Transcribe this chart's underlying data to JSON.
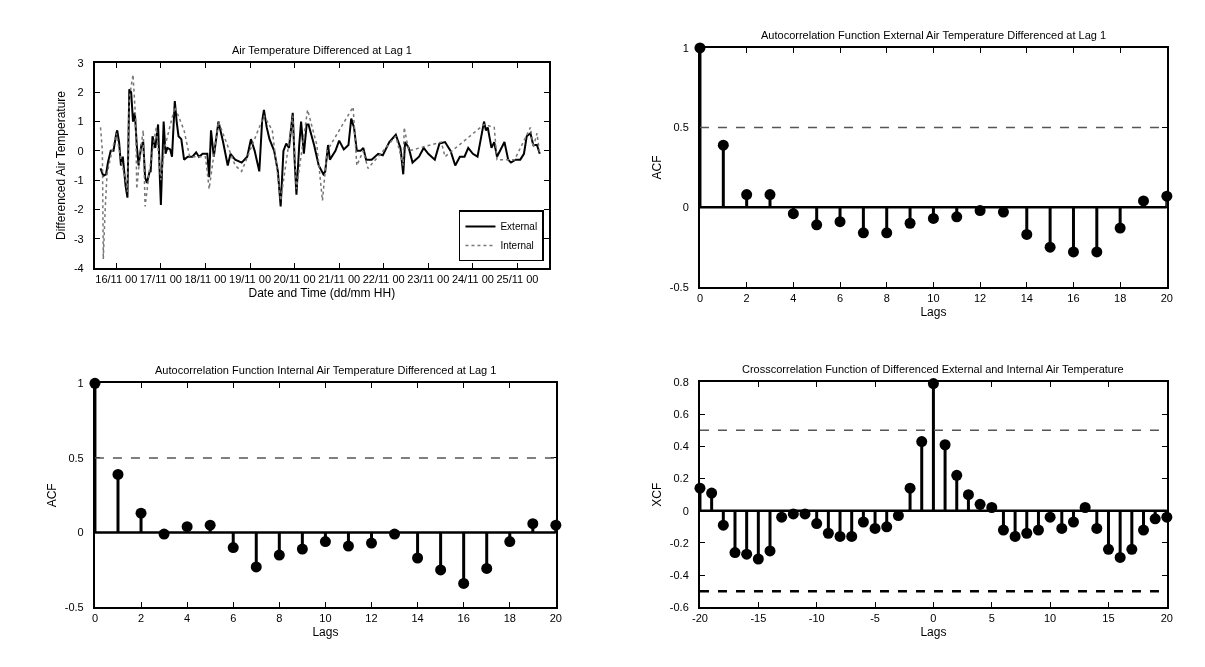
{
  "chart_data": [
    {
      "type": "line",
      "title": "Air Temperature Differenced at Lag 1",
      "xlabel": "Date and Time (dd/mm HH)",
      "ylabel": "Differenced Air Temperature",
      "xlim": [
        "--11-15T12:30",
        "--11-25T16:50"
      ],
      "ylim": [
        -4,
        3
      ],
      "yticks": [
        -4,
        -3,
        -2,
        -1,
        0,
        1,
        2,
        3
      ],
      "xticks": [
        {
          "value": "--11-16T00:00",
          "label": "16/11 00"
        },
        {
          "value": "--11-17T00:00",
          "label": "17/11 00"
        },
        {
          "value": "--11-18T00:00",
          "label": "18/11 00"
        },
        {
          "value": "--11-19T00:00",
          "label": "19/11 00"
        },
        {
          "value": "--11-20T00:00",
          "label": "20/11 00"
        },
        {
          "value": "--11-21T00:00",
          "label": "21/11 00"
        },
        {
          "value": "--11-22T00:00",
          "label": "22/11 00"
        },
        {
          "value": "--11-23T00:00",
          "label": "23/11 00"
        },
        {
          "value": "--11-24T00:00",
          "label": "24/11 00"
        },
        {
          "value": "--11-25T00:00",
          "label": "25/11 00"
        }
      ],
      "legend": "bottom right",
      "series": [
        {
          "name": "External",
          "color": "#000000",
          "line_style": "solid",
          "x": [
            "--11-15T15:30",
            "--11-15T17:00",
            "--11-15T18:30",
            "--11-15T19:30",
            "--11-15T21:00",
            "--11-15T22:30",
            "--11-16T00:00",
            "--11-16T00:30",
            "--11-16T01:30",
            "--11-16T02:30",
            "--11-16T03:30",
            "--11-16T05:00",
            "--11-16T06:00",
            "--11-16T07:00",
            "--11-16T08:00",
            "--11-16T09:00",
            "--11-16T10:00",
            "--11-16T11:00",
            "--11-16T12:00",
            "--11-16T13:30",
            "--11-16T14:30",
            "--11-16T15:30",
            "--11-16T16:30",
            "--11-16T18:00",
            "--11-16T18:30",
            "--11-16T19:30",
            "--11-16T21:00",
            "--11-16T22:30",
            "--11-16T23:30",
            "--11-17T00:00",
            "--11-17T01:30",
            "--11-17T02:30",
            "--11-17T03:30",
            "--11-17T05:00",
            "--11-17T06:00",
            "--11-17T07:30",
            "--11-17T08:30",
            "--11-17T09:30",
            "--11-17T11:00",
            "--11-17T12:30",
            "--11-17T14:30",
            "--11-17T17:00",
            "--11-17T19:00",
            "--11-17T20:30",
            "--11-17T22:30",
            "--11-18T01:00",
            "--11-18T02:00",
            "--11-18T03:00",
            "--11-18T04:30",
            "--11-18T07:00",
            "--11-18T09:30",
            "--11-18T12:00",
            "--11-18T13:30",
            "--11-18T16:00",
            "--11-18T19:30",
            "--11-18T22:30",
            "--11-19T00:30",
            "--11-19T02:30",
            "--11-19T05:00",
            "--11-19T06:30",
            "--11-19T07:30",
            "--11-19T09:00",
            "--11-19T10:30",
            "--11-19T13:00",
            "--11-19T15:00",
            "--11-19T16:30",
            "--11-19T18:00",
            "--11-19T19:30",
            "--11-19T21:00",
            "--11-19T23:00",
            "--11-20T00:00",
            "--11-20T01:00",
            "--11-20T02:30",
            "--11-20T03:30",
            "--11-20T05:00",
            "--11-20T06:30",
            "--11-20T07:30",
            "--11-20T10:30",
            "--11-20T13:00",
            "--11-20T15:30",
            "--11-20T16:30",
            "--11-20T18:00",
            "--11-20T19:00",
            "--11-20T22:00",
            "--11-21T00:00",
            "--11-21T02:30",
            "--11-21T05:00",
            "--11-21T06:30",
            "--11-21T08:00",
            "--11-21T09:30",
            "--11-21T11:30",
            "--11-21T13:00",
            "--11-21T14:30",
            "--11-21T17:30",
            "--11-21T21:00",
            "--11-21T23:30",
            "--11-22T03:00",
            "--11-22T06:30",
            "--11-22T09:00",
            "--11-22T10:30",
            "--11-22T11:30",
            "--11-22T13:30",
            "--11-22T15:30",
            "--11-22T19:00",
            "--11-22T21:30",
            "--11-23T00:00",
            "--11-23T03:30",
            "--11-23T06:00",
            "--11-23T09:00",
            "--11-23T12:00",
            "--11-23T14:30",
            "--11-23T17:00",
            "--11-23T19:30",
            "--11-23T21:30",
            "--11-24T00:00",
            "--11-24T02:30",
            "--11-24T06:00",
            "--11-24T07:00",
            "--11-24T08:00",
            "--11-24T10:00",
            "--11-24T11:30",
            "--11-24T13:00",
            "--11-24T17:00",
            "--11-24T19:00",
            "--11-24T20:30",
            "--11-24T23:00",
            "--11-25T01:30",
            "--11-25T03:30",
            "--11-25T05:00",
            "--11-25T07:00",
            "--11-25T08:30",
            "--11-25T10:30",
            "--11-25T12:00"
          ],
          "values": [
            -0.6,
            -0.85,
            -0.8,
            -0.4,
            0,
            0,
            0.6,
            0.7,
            0.3,
            -0.5,
            -0.2,
            -1.2,
            -1.6,
            2.1,
            2.0,
            1.0,
            1.3,
            0.2,
            -0.5,
            0.2,
            0.3,
            -0.9,
            -1.1,
            -0.7,
            -0.7,
            0.5,
            0.1,
            0.9,
            -1.0,
            -1.85,
            1.0,
            -0.1,
            0.1,
            0.05,
            -0.2,
            1.7,
            1.0,
            0.5,
            0.4,
            -0.3,
            -0.2,
            -0.2,
            -0.05,
            -0.2,
            -0.1,
            -0.1,
            -0.9,
            0.7,
            -0.2,
            1.0,
            0.3,
            -0.5,
            -0.1,
            -0.3,
            -0.4,
            -0.2,
            0.4,
            0.0,
            -0.7,
            1.0,
            1.4,
            0.8,
            0.4,
            0.0,
            -0.7,
            -1.9,
            0.0,
            0.25,
            0.1,
            1.3,
            -0.3,
            -1.5,
            0.2,
            1.0,
            -0.1,
            0.9,
            0.9,
            0.2,
            -0.5,
            -0.8,
            -0.7,
            0.2,
            -0.3,
            0,
            0.35,
            0.05,
            0.2,
            1.1,
            0.8,
            0.0,
            0.0,
            0.1,
            -0.3,
            -0.3,
            -0.1,
            -0.15,
            0.3,
            0.55,
            0.1,
            -0.8,
            0.3,
            0.1,
            -0.4,
            -0.2,
            0.1,
            -0.1,
            -0.3,
            0.25,
            0.3,
            0.0,
            -0.5,
            -0.2,
            -0.2,
            0.1,
            -0.1,
            -0.2,
            1.0,
            0.7,
            0.8,
            0.1,
            0.3,
            -0.2,
            0.3,
            -0.3,
            -0.4,
            -0.3,
            -0.3,
            -0.1,
            0.5,
            0.6,
            0.2,
            0.2,
            -0.1
          ]
        },
        {
          "name": "Internal",
          "color": "#777777",
          "line_style": "dotted",
          "x": [
            "--11-15T15:30",
            "--11-15T16:30",
            "--11-15T17:00",
            "--11-15T18:00",
            "--11-15T19:00",
            "--11-15T21:00",
            "--11-16T00:00",
            "--11-16T02:30",
            "--11-16T05:00",
            "--11-16T06:00",
            "--11-16T07:00",
            "--11-16T09:00",
            "--11-16T10:30",
            "--11-16T11:00",
            "--11-16T13:00",
            "--11-16T14:30",
            "--11-16T15:30",
            "--11-16T18:00",
            "--11-16T21:30",
            "--11-17T00:00",
            "--11-17T02:00",
            "--11-17T07:30",
            "--11-17T12:30",
            "--11-17T15:30",
            "--11-18T00:00",
            "--11-18T02:00",
            "--11-18T07:00",
            "--11-18T16:00",
            "--11-18T19:30",
            "--11-19T07:30",
            "--11-19T12:00",
            "--11-19T16:30",
            "--11-19T23:00",
            "--11-20T01:00",
            "--11-20T07:00",
            "--11-20T12:00",
            "--11-20T15:00",
            "--11-20T17:30",
            "--11-21T07:30",
            "--11-21T09:30",
            "--11-21T13:00",
            "--11-21T15:30",
            "--11-22T06:30",
            "--11-22T10:30",
            "--11-22T11:00",
            "--11-22T13:30",
            "--11-23T07:00",
            "--11-23T09:00",
            "--11-24T06:00",
            "--11-24T11:30",
            "--11-24T13:00",
            "--11-24T22:30",
            "--11-25T07:00",
            "--11-25T08:30",
            "--11-25T10:30",
            "--11-25T12:00"
          ],
          "values": [
            0.8,
            0.0,
            -3.7,
            -2.0,
            -0.8,
            -0.2,
            0.6,
            -0.3,
            -1.0,
            -1.4,
            1.8,
            2.6,
            1.0,
            -1.3,
            0.0,
            0.7,
            -1.9,
            -0.6,
            0.8,
            -1.0,
            0.1,
            1.5,
            0.7,
            -0.2,
            -0.2,
            -1.3,
            1.0,
            -0.5,
            -0.7,
            1.2,
            0.7,
            -1.7,
            1.2,
            -1.3,
            1.4,
            0.2,
            -1.7,
            0.0,
            1.5,
            -0.5,
            0.0,
            -0.6,
            0.5,
            -0.5,
            0.8,
            0.0,
            0.3,
            -0.2,
            0.9,
            0.8,
            -0.3,
            -0.3,
            0.8,
            0.1,
            0.6,
            -0.1
          ]
        }
      ]
    },
    {
      "type": "lollipop",
      "title": "Autocorrelation Function External Air Temperature Differenced at Lag 1",
      "xlabel": "Lags",
      "ylabel": "ACF",
      "xlim": [
        0,
        20
      ],
      "xticks": [
        0,
        2,
        4,
        6,
        8,
        10,
        12,
        14,
        16,
        18,
        20
      ],
      "ylim": [
        -0.5,
        1
      ],
      "yticks": [
        -0.5,
        0,
        0.5,
        1
      ],
      "marker": "circle",
      "x": [
        0,
        1,
        2,
        3,
        4,
        5,
        6,
        7,
        8,
        9,
        10,
        11,
        12,
        13,
        14,
        15,
        16,
        17,
        18,
        19,
        20
      ],
      "values": [
        1,
        0.39,
        0.08,
        0.08,
        -0.04,
        -0.11,
        -0.09,
        -0.16,
        -0.16,
        -0.1,
        -0.07,
        -0.06,
        -0.02,
        -0.03,
        -0.17,
        -0.25,
        -0.28,
        -0.28,
        -0.13,
        0.04,
        0.07
      ],
      "color": "#000000",
      "ref_lines": [
        {
          "axis": "y",
          "value": 0.5,
          "color": "#555555",
          "line_style": "dashed"
        },
        {
          "axis": "y",
          "value": 0,
          "color": "#000000",
          "line_style": "solid"
        }
      ]
    },
    {
      "type": "lollipop",
      "title": "Autocorrelation Function Internal Air Temperature Differenced at Lag 1",
      "xlabel": "Lags",
      "ylabel": "ACF",
      "xlim": [
        0,
        20
      ],
      "xticks": [
        0,
        2,
        4,
        6,
        8,
        10,
        12,
        14,
        16,
        18,
        20
      ],
      "ylim": [
        -0.5,
        1
      ],
      "yticks": [
        -0.5,
        0,
        0.5,
        1
      ],
      "marker": "circle",
      "x": [
        0,
        1,
        2,
        3,
        4,
        5,
        6,
        7,
        8,
        9,
        10,
        11,
        12,
        13,
        14,
        15,
        16,
        17,
        18,
        19,
        20
      ],
      "values": [
        1,
        0.39,
        0.13,
        -0.01,
        0.04,
        0.05,
        -0.1,
        -0.23,
        -0.15,
        -0.11,
        -0.06,
        -0.09,
        -0.07,
        -0.01,
        -0.17,
        -0.25,
        -0.34,
        -0.24,
        -0.06,
        0.06,
        0.05
      ],
      "color": "#000000",
      "ref_lines": [
        {
          "axis": "y",
          "value": 0.5,
          "color": "#555555",
          "line_style": "dashed"
        },
        {
          "axis": "y",
          "value": 0,
          "color": "#000000",
          "line_style": "solid"
        }
      ]
    },
    {
      "type": "lollipop",
      "title": "Crosscorrelation Function of Differenced External and Internal Air Temperature",
      "xlabel": "Lags",
      "ylabel": "XCF",
      "xlim": [
        -20,
        20
      ],
      "xticks": [
        -20,
        -15,
        -10,
        -5,
        0,
        5,
        10,
        15,
        20
      ],
      "ylim": [
        -0.6,
        0.8
      ],
      "yticks": [
        -0.6,
        -0.4,
        -0.2,
        0,
        0.2,
        0.4,
        0.6,
        0.8
      ],
      "marker": "circle",
      "x": [
        -20,
        -19,
        -18,
        -17,
        -16,
        -15,
        -14,
        -13,
        -12,
        -11,
        -10,
        -9,
        -8,
        -7,
        -6,
        -5,
        -4,
        -3,
        -2,
        -1,
        0,
        1,
        2,
        3,
        4,
        5,
        6,
        7,
        8,
        9,
        10,
        11,
        12,
        13,
        14,
        15,
        16,
        17,
        18,
        19,
        20
      ],
      "values": [
        0.14,
        0.11,
        -0.09,
        -0.26,
        -0.27,
        -0.3,
        -0.25,
        -0.04,
        -0.02,
        -0.02,
        -0.08,
        -0.14,
        -0.16,
        -0.16,
        -0.07,
        -0.11,
        -0.1,
        -0.03,
        0.14,
        0.43,
        0.79,
        0.41,
        0.22,
        0.1,
        0.04,
        0.02,
        -0.12,
        -0.16,
        -0.14,
        -0.12,
        -0.04,
        -0.11,
        -0.07,
        0.02,
        -0.11,
        -0.24,
        -0.29,
        -0.24,
        -0.12,
        -0.05,
        -0.04
      ],
      "color": "#000000",
      "ref_lines": [
        {
          "axis": "y",
          "value": 0.5,
          "color": "#555555",
          "line_style": "dashed"
        },
        {
          "axis": "y",
          "value": -0.5,
          "color": "#000000",
          "line_style": "dashed"
        },
        {
          "axis": "y",
          "value": 0,
          "color": "#000000",
          "line_style": "solid"
        }
      ]
    }
  ]
}
